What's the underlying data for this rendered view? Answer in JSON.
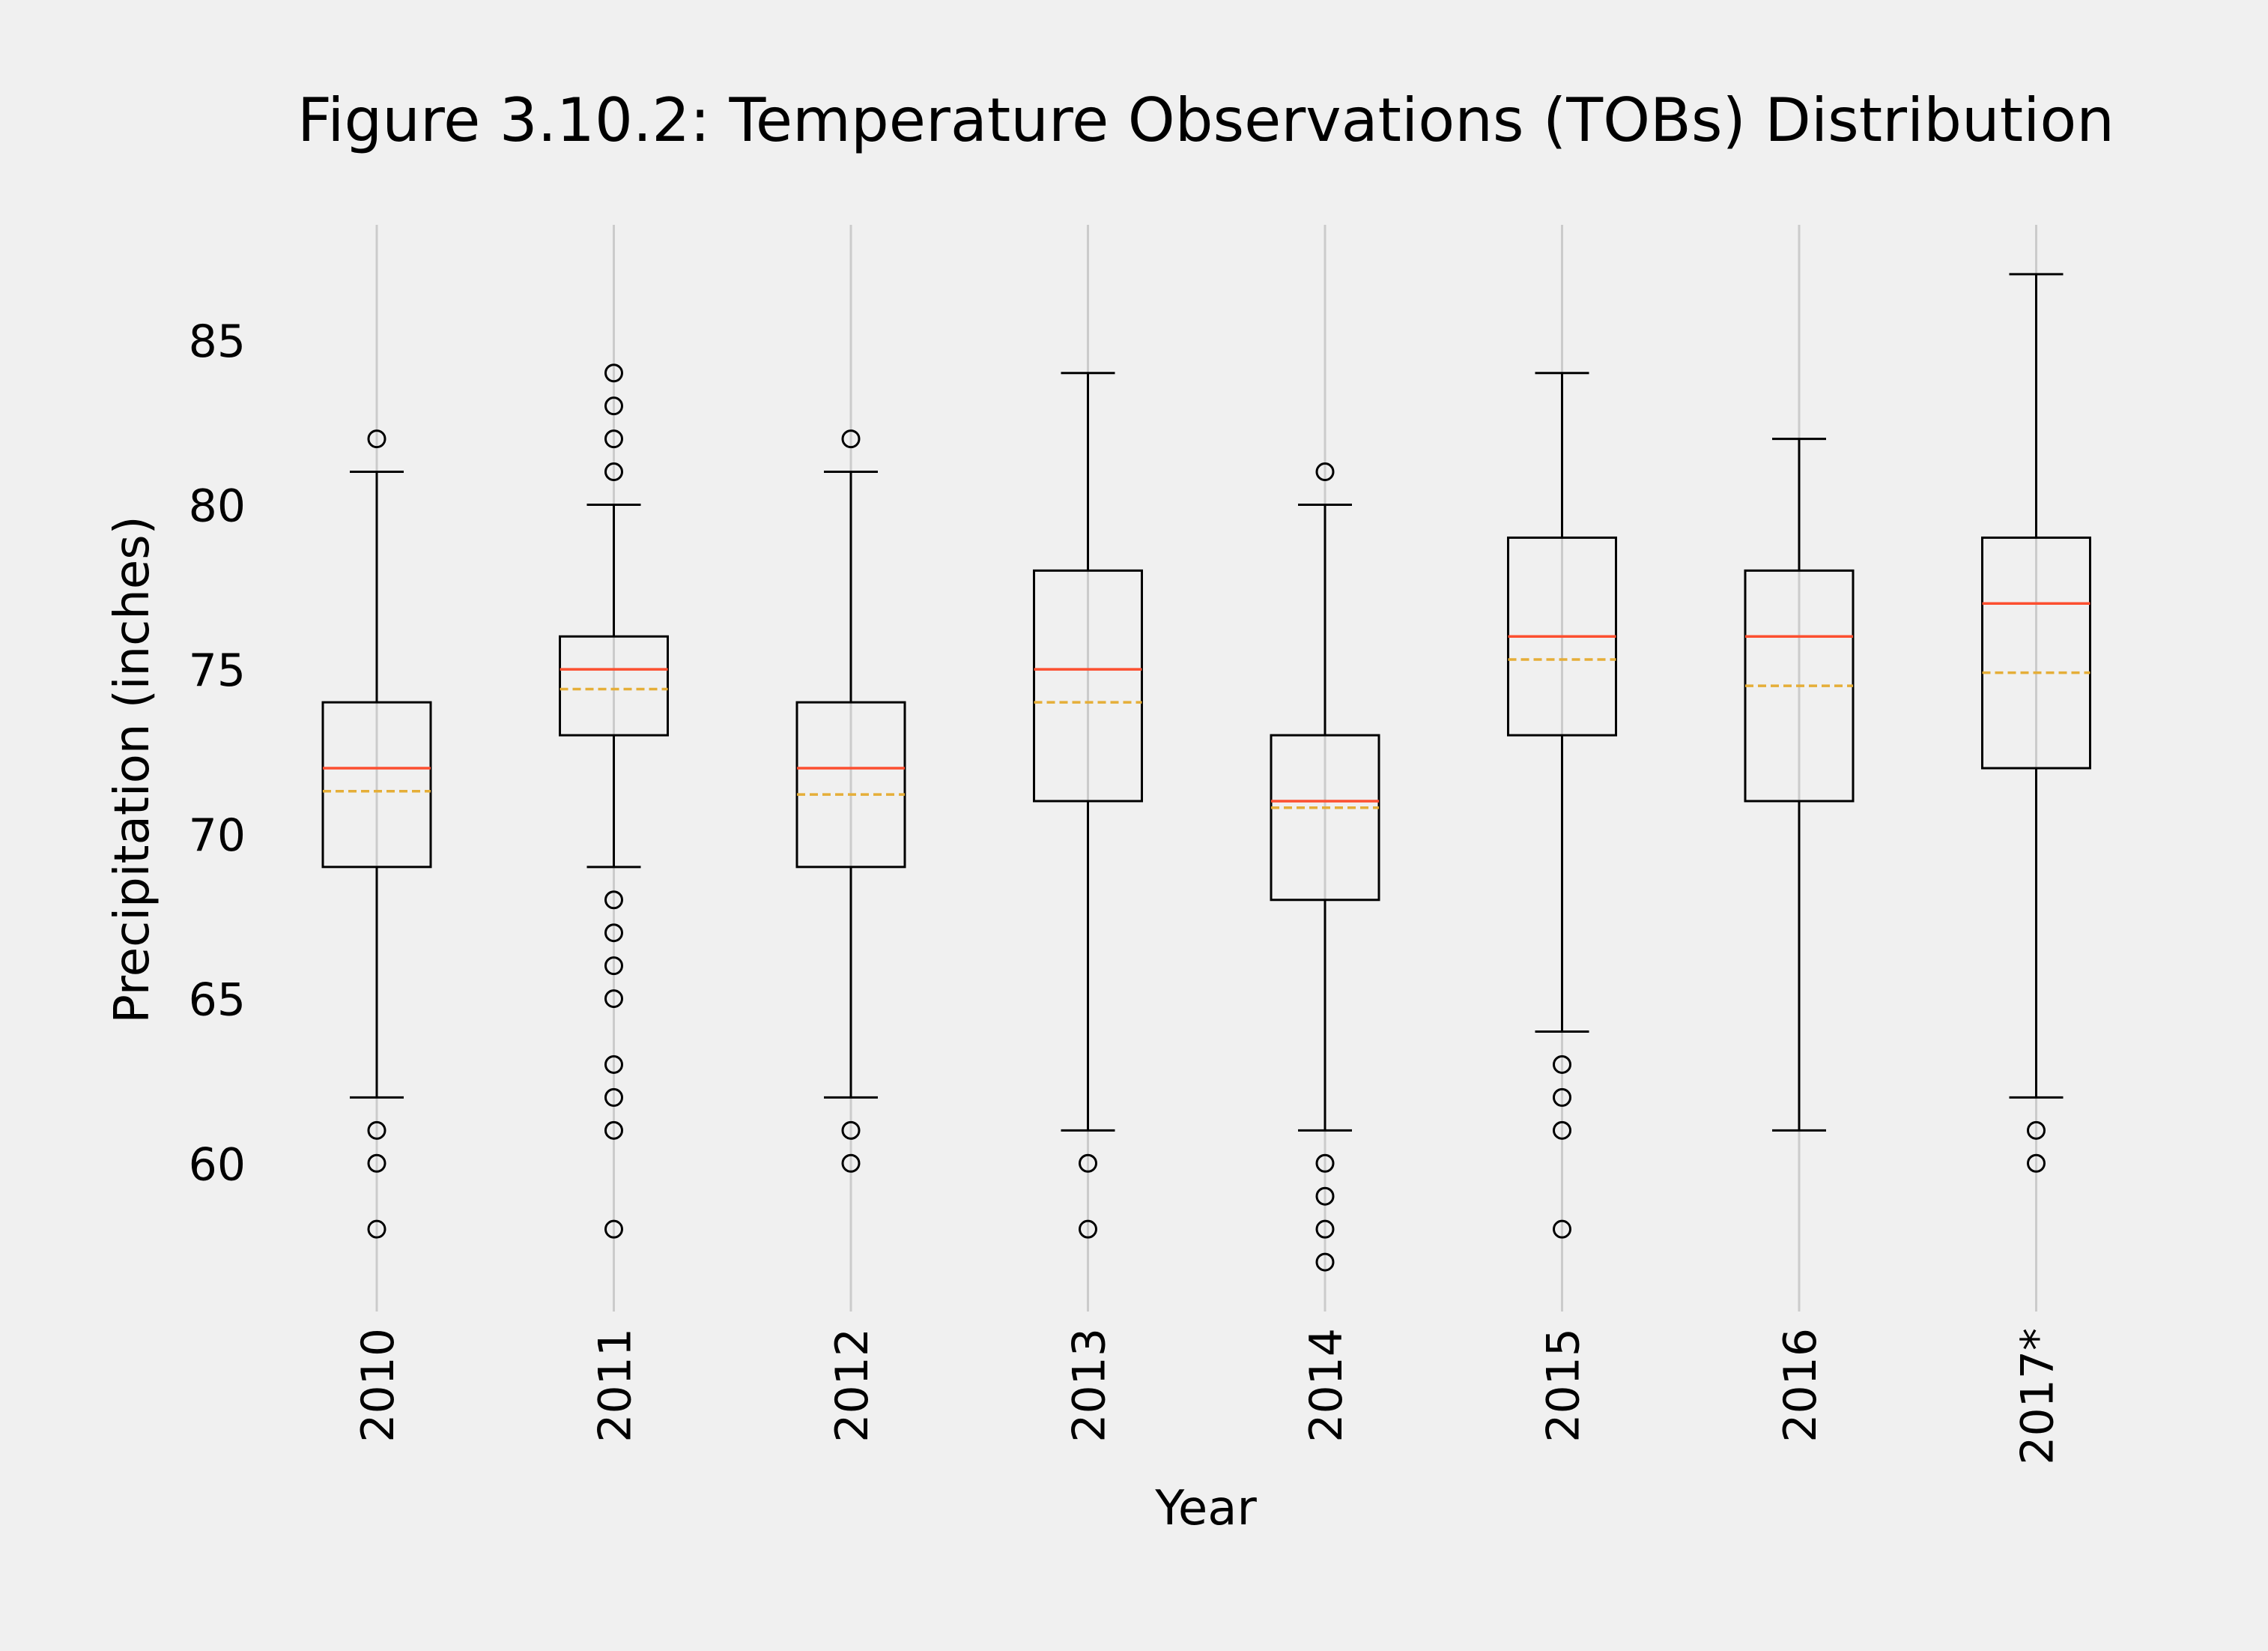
{
  "chart_data": {
    "type": "boxplot",
    "title": "Figure 3.10.2: Temperature Observations (TOBs) Distribution",
    "xlabel": "Year",
    "ylabel": "Precipitation (inches)",
    "categories": [
      "2010",
      "2011",
      "2012",
      "2013",
      "2014",
      "2015",
      "2016",
      "2017*"
    ],
    "ylim": [
      55.5,
      88.5
    ],
    "yticks": [
      60,
      65,
      70,
      75,
      80,
      85
    ],
    "grid": "vertical",
    "boxes": [
      {
        "label": "2010",
        "whisker_low": 62,
        "q1": 69,
        "median": 72,
        "mean": 71.3,
        "q3": 74,
        "whisker_high": 81,
        "outliers": [
          82,
          61,
          60,
          58
        ]
      },
      {
        "label": "2011",
        "whisker_low": 69,
        "q1": 73,
        "median": 75,
        "mean": 74.4,
        "q3": 76,
        "whisker_high": 80,
        "outliers": [
          84,
          83,
          82,
          81,
          68,
          67,
          66,
          65,
          63,
          62,
          61,
          58
        ]
      },
      {
        "label": "2012",
        "whisker_low": 62,
        "q1": 69,
        "median": 72,
        "mean": 71.2,
        "q3": 74,
        "whisker_high": 81,
        "outliers": [
          82,
          61,
          60
        ]
      },
      {
        "label": "2013",
        "whisker_low": 61,
        "q1": 71,
        "median": 75,
        "mean": 74.0,
        "q3": 78,
        "whisker_high": 84,
        "outliers": [
          60,
          58
        ]
      },
      {
        "label": "2014",
        "whisker_low": 61,
        "q1": 68,
        "median": 71,
        "mean": 70.8,
        "q3": 73,
        "whisker_high": 80,
        "outliers": [
          81,
          60,
          59,
          58,
          57
        ]
      },
      {
        "label": "2015",
        "whisker_low": 64,
        "q1": 73,
        "median": 76,
        "mean": 75.3,
        "q3": 79,
        "whisker_high": 84,
        "outliers": [
          63,
          62,
          61,
          58
        ]
      },
      {
        "label": "2016",
        "whisker_low": 61,
        "q1": 71,
        "median": 76,
        "mean": 74.5,
        "q3": 78,
        "whisker_high": 82,
        "outliers": []
      },
      {
        "label": "2017*",
        "whisker_low": 62,
        "q1": 72,
        "median": 77,
        "mean": 74.9,
        "q3": 79,
        "whisker_high": 87,
        "outliers": [
          61,
          60
        ]
      }
    ],
    "colors": {
      "background": "#f0f0f0",
      "grid": "#cbcbcb",
      "box": "#000000",
      "median": "#fc4f30",
      "mean": "#e5ae38"
    }
  }
}
